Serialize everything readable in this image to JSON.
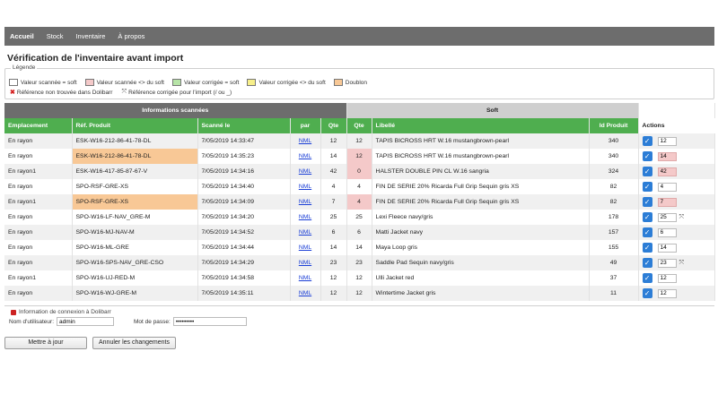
{
  "nav": {
    "items": [
      "Accueil",
      "Stock",
      "Inventaire",
      "À propos"
    ]
  },
  "page": {
    "title": "Vérification de l'inventaire avant import"
  },
  "legend": {
    "title": "Légende",
    "items": [
      {
        "label": "Valeur scannée = soft",
        "color": "#ffffff"
      },
      {
        "label": "Valeur scannée <> du soft",
        "color": "#f4c9c9"
      },
      {
        "label": "Valeur corrigée = soft",
        "color": "#b7e4a7"
      },
      {
        "label": "Valeur corrigée <> du soft",
        "color": "#f7ef8a"
      },
      {
        "label": "Doublon",
        "color": "#f8c896"
      }
    ],
    "not_found": "Référence non trouvée dans Dolibarr",
    "corrected_ref": "Référence corrigée pour l'import (/ ou _)"
  },
  "table": {
    "group_scanned": "Informations scannées",
    "group_soft": "Soft",
    "headers": {
      "emplacement": "Emplacement",
      "ref": "Réf. Produit",
      "scanned": "Scanné le",
      "par": "par",
      "qte": "Qte",
      "qte_soft": "Qte",
      "libelle": "Libellé",
      "id": "Id Produit",
      "actions": "Actions"
    },
    "rows": [
      {
        "emplacement": "En rayon",
        "ref": "ESK-W16-212-86-41-78-DL",
        "date": "7/05/2019 14:33:47",
        "par": "NML",
        "qte": "12",
        "qte_soft": "12",
        "libelle": "TAPIS BICROSS HRT W.16 mustangbrown-pearl",
        "id": "340",
        "input": "12",
        "ref_orange": false,
        "soft_pink": false,
        "input_pink": false,
        "expand": false
      },
      {
        "emplacement": "En rayon",
        "ref": "ESK-W16-212-86-41-78-DL",
        "date": "7/05/2019 14:35:23",
        "par": "NML",
        "qte": "14",
        "qte_soft": "12",
        "libelle": "TAPIS BICROSS HRT W.16 mustangbrown-pearl",
        "id": "340",
        "input": "14",
        "ref_orange": true,
        "soft_pink": true,
        "input_pink": true,
        "expand": false
      },
      {
        "emplacement": "En rayon1",
        "ref": "ESK-W16-417-85-87-67-V",
        "date": "7/05/2019 14:34:16",
        "par": "NML",
        "qte": "42",
        "qte_soft": "0",
        "libelle": "HALSTER DOUBLE PIN CL W.16 sangria",
        "id": "324",
        "input": "42",
        "ref_orange": false,
        "soft_pink": true,
        "input_pink": true,
        "expand": false
      },
      {
        "emplacement": "En rayon",
        "ref": "SPO-RSF-GRE-XS",
        "date": "7/05/2019 14:34:40",
        "par": "NML",
        "qte": "4",
        "qte_soft": "4",
        "libelle": "FIN DE SERIE 20% Ricarda Full Grip Sequin gris XS",
        "id": "82",
        "input": "4",
        "ref_orange": false,
        "soft_pink": false,
        "input_pink": false,
        "expand": false
      },
      {
        "emplacement": "En rayon1",
        "ref": "SPO-RSF-GRE-XS",
        "date": "7/05/2019 14:34:09",
        "par": "NML",
        "qte": "7",
        "qte_soft": "4",
        "libelle": "FIN DE SERIE 20% Ricarda Full Grip Sequin gris XS",
        "id": "82",
        "input": "7",
        "ref_orange": true,
        "soft_pink": true,
        "input_pink": true,
        "expand": false
      },
      {
        "emplacement": "En rayon",
        "ref": "SPO-W16-LF-NAV_GRE-M",
        "date": "7/05/2019 14:34:20",
        "par": "NML",
        "qte": "25",
        "qte_soft": "25",
        "libelle": "Lexi Fleece navy/gris",
        "id": "178",
        "input": "25",
        "ref_orange": false,
        "soft_pink": false,
        "input_pink": false,
        "expand": true
      },
      {
        "emplacement": "En rayon",
        "ref": "SPO-W16-MJ-NAV-M",
        "date": "7/05/2019 14:34:52",
        "par": "NML",
        "qte": "6",
        "qte_soft": "6",
        "libelle": "Matti Jacket navy",
        "id": "157",
        "input": "6",
        "ref_orange": false,
        "soft_pink": false,
        "input_pink": false,
        "expand": false
      },
      {
        "emplacement": "En rayon",
        "ref": "SPO-W16-ML-GRE",
        "date": "7/05/2019 14:34:44",
        "par": "NML",
        "qte": "14",
        "qte_soft": "14",
        "libelle": "Maya Loop gris",
        "id": "155",
        "input": "14",
        "ref_orange": false,
        "soft_pink": false,
        "input_pink": false,
        "expand": false
      },
      {
        "emplacement": "En rayon",
        "ref": "SPO-W16-SPS-NAV_GRE-CSO",
        "date": "7/05/2019 14:34:29",
        "par": "NML",
        "qte": "23",
        "qte_soft": "23",
        "libelle": "Saddle Pad Sequin navy/gris",
        "id": "49",
        "input": "23",
        "ref_orange": false,
        "soft_pink": false,
        "input_pink": false,
        "expand": true
      },
      {
        "emplacement": "En rayon1",
        "ref": "SPO-W16-UJ-RED-M",
        "date": "7/05/2019 14:34:58",
        "par": "NML",
        "qte": "12",
        "qte_soft": "12",
        "libelle": "Ulli Jacket red",
        "id": "37",
        "input": "12",
        "ref_orange": false,
        "soft_pink": false,
        "input_pink": false,
        "expand": false
      },
      {
        "emplacement": "En rayon",
        "ref": "SPO-W16-WJ-GRE-M",
        "date": "7/05/2019 14:35:11",
        "par": "NML",
        "qte": "12",
        "qte_soft": "12",
        "libelle": "Wintertime Jacket gris",
        "id": "11",
        "input": "12",
        "ref_orange": false,
        "soft_pink": false,
        "input_pink": false,
        "expand": false
      }
    ]
  },
  "connection": {
    "title": "Information de connexion à Dolibarr",
    "user_label": "Nom d'utilisateur:",
    "user_value": "admin",
    "password_label": "Mot de passe:",
    "password_value": "•••••••••"
  },
  "buttons": {
    "update": "Mettre à jour",
    "cancel": "Annuler les changements"
  },
  "icons": {
    "check": "checkbox-checked-icon",
    "expand": "arrows-expand-icon",
    "x": "x-mark-icon",
    "lock": "lock-icon"
  },
  "colors": {
    "nav": "#6d6d6d",
    "header_green": "#4fae4f",
    "duplicate": "#f8c896",
    "mismatch": "#f4c9c9",
    "checkbox": "#2c7dd6"
  }
}
